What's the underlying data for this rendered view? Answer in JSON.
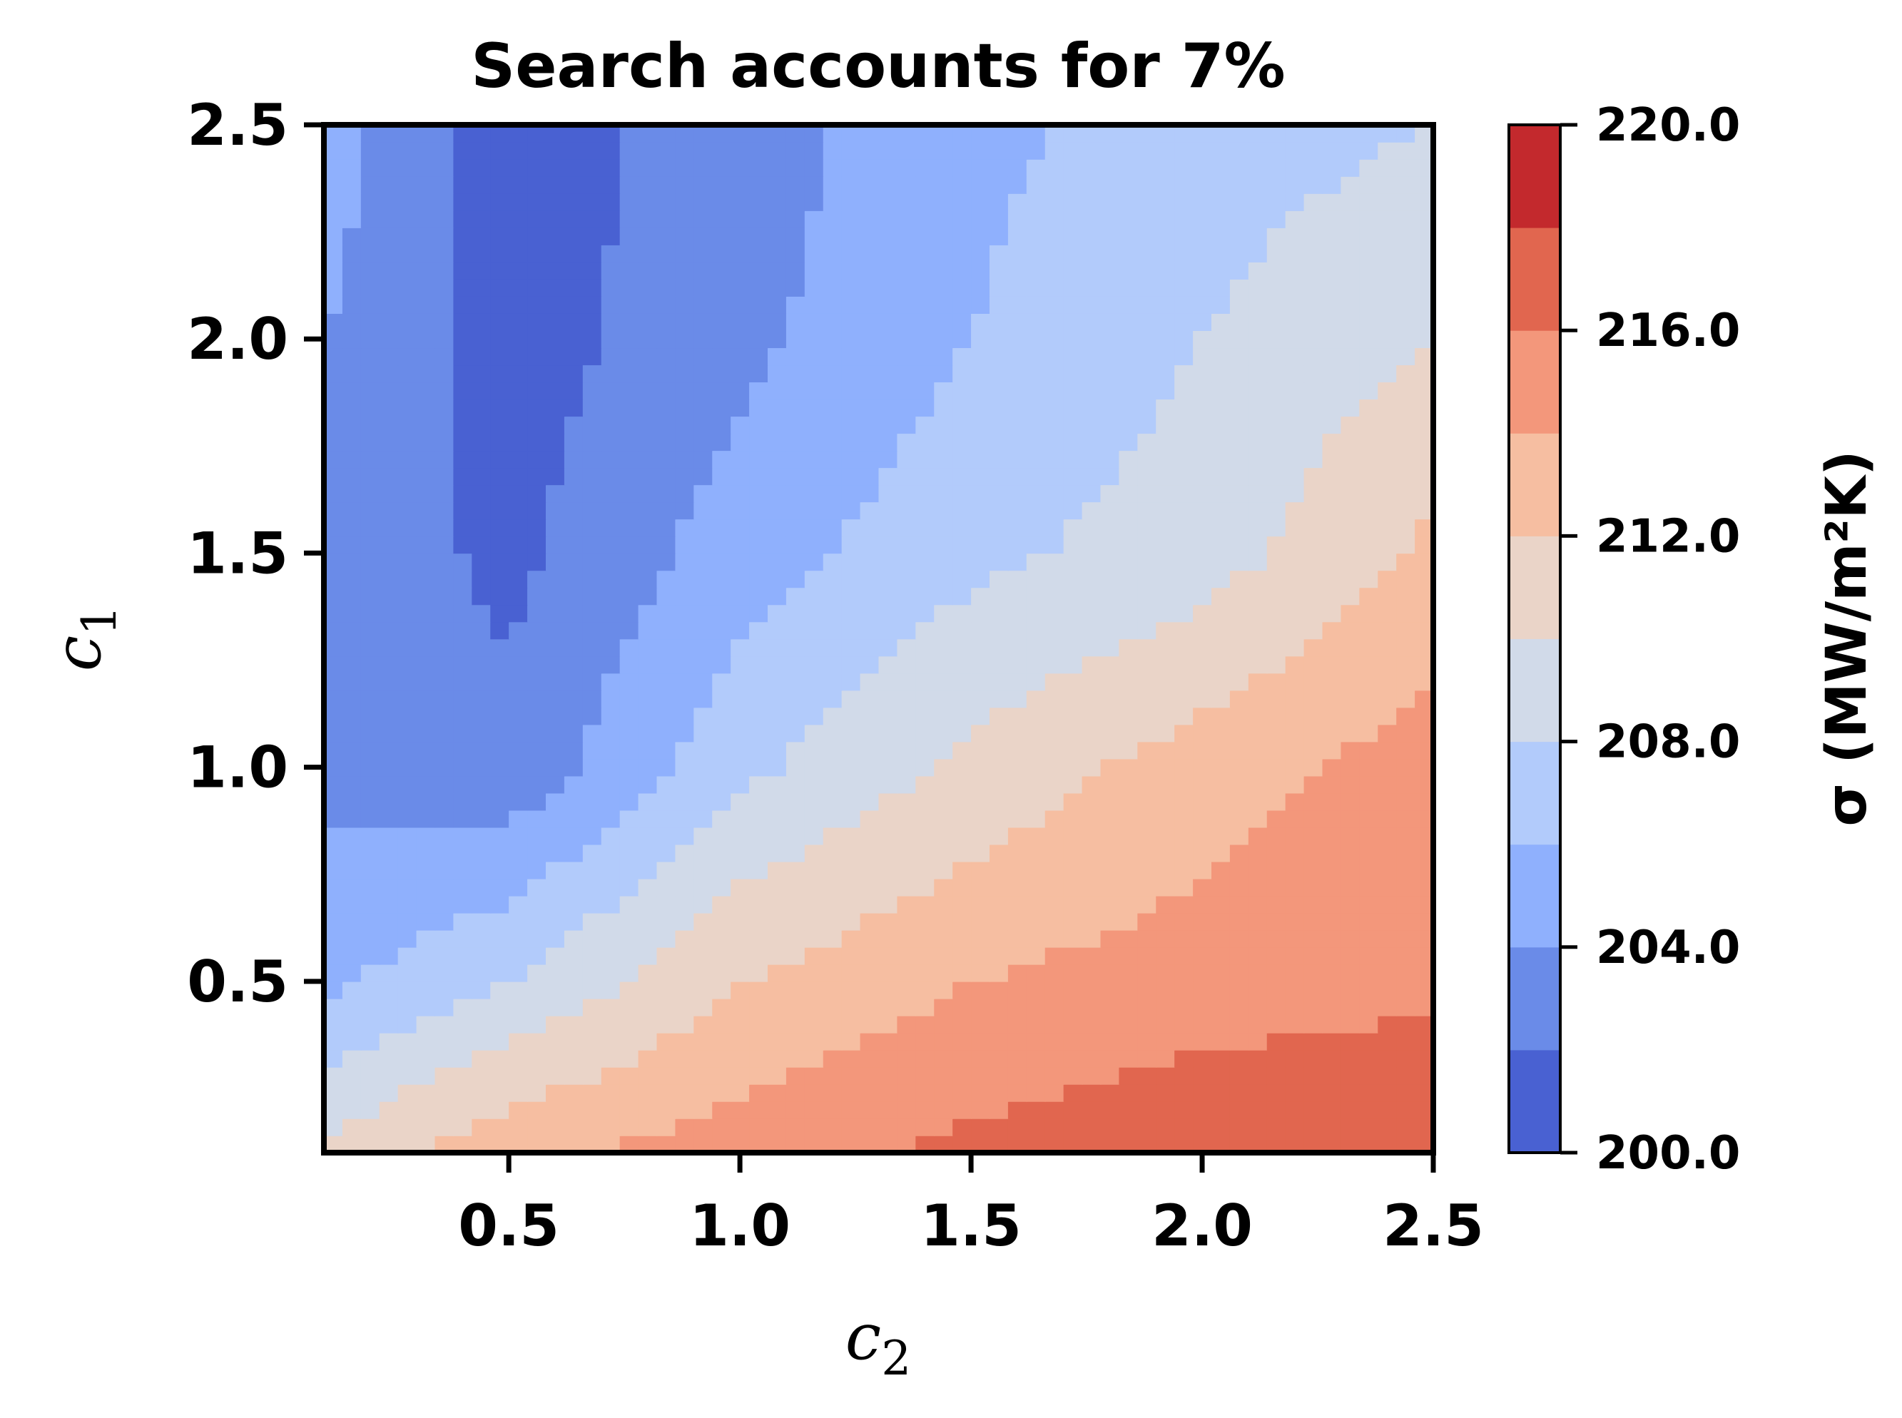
{
  "chart_data": {
    "type": "contour",
    "title": "Search accounts for 7%",
    "xlabel": {
      "symbol": "c",
      "subscript": "2"
    },
    "ylabel": {
      "symbol": "c",
      "subscript": "1"
    },
    "xlim": [
      0.1,
      2.5
    ],
    "ylim": [
      0.1,
      2.5
    ],
    "xticks": [
      {
        "value": 0.5,
        "label": "0.5"
      },
      {
        "value": 1.0,
        "label": "1.0"
      },
      {
        "value": 1.5,
        "label": "1.5"
      },
      {
        "value": 2.0,
        "label": "2.0"
      },
      {
        "value": 2.5,
        "label": "2.5"
      }
    ],
    "yticks": [
      {
        "value": 0.5,
        "label": "0.5"
      },
      {
        "value": 1.0,
        "label": "1.0"
      },
      {
        "value": 1.5,
        "label": "1.5"
      },
      {
        "value": 2.0,
        "label": "2.0"
      },
      {
        "value": 2.5,
        "label": "2.5"
      }
    ],
    "colorbar": {
      "label": "σ (MW/m²K)",
      "range": [
        200.0,
        220.0
      ],
      "ticks": [
        {
          "value": 200,
          "label": "200.0"
        },
        {
          "value": 204,
          "label": "204.0"
        },
        {
          "value": 208,
          "label": "208.0"
        },
        {
          "value": 212,
          "label": "212.0"
        },
        {
          "value": 216,
          "label": "216.0"
        },
        {
          "value": 220,
          "label": "220.0"
        }
      ],
      "levels": [
        200,
        202,
        204,
        206,
        208,
        210,
        212,
        214,
        216,
        218,
        220
      ],
      "colors": [
        "#4961d2",
        "#6a8be8",
        "#8fb0fd",
        "#b2cbfb",
        "#d1dae9",
        "#ead4c8",
        "#f6bea1",
        "#f3977b",
        "#e1664f",
        "#c3292d"
      ]
    },
    "field": {
      "x": [
        0.1,
        0.5,
        1.0,
        1.5,
        2.0,
        2.5
      ],
      "y": [
        0.1,
        0.5,
        1.0,
        1.5,
        2.0,
        2.5
      ],
      "z": [
        [
          210.5,
          213.5,
          215.0,
          216.5,
          217.5,
          218.0
        ],
        [
          205.5,
          208.0,
          212.0,
          214.0,
          215.0,
          215.5
        ],
        [
          203.5,
          202.5,
          207.5,
          210.5,
          213.0,
          215.0
        ],
        [
          203.5,
          201.5,
          205.0,
          207.5,
          209.0,
          212.5
        ],
        [
          204.0,
          201.0,
          203.5,
          206.0,
          208.0,
          210.0
        ],
        [
          205.0,
          201.0,
          203.0,
          205.5,
          207.0,
          208.0
        ]
      ]
    }
  }
}
